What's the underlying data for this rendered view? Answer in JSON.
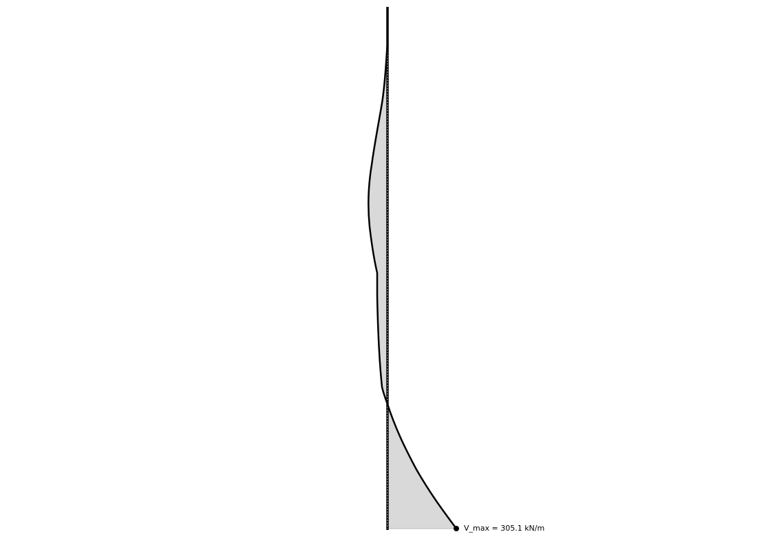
{
  "diagram": {
    "type": "shear-force-diagram",
    "max_label": "V_max = 305.1 kN/m",
    "max_value": 305.1,
    "colors": {
      "wall": "#000000",
      "fill": "#d9d9d9",
      "outline": "#000000"
    }
  }
}
